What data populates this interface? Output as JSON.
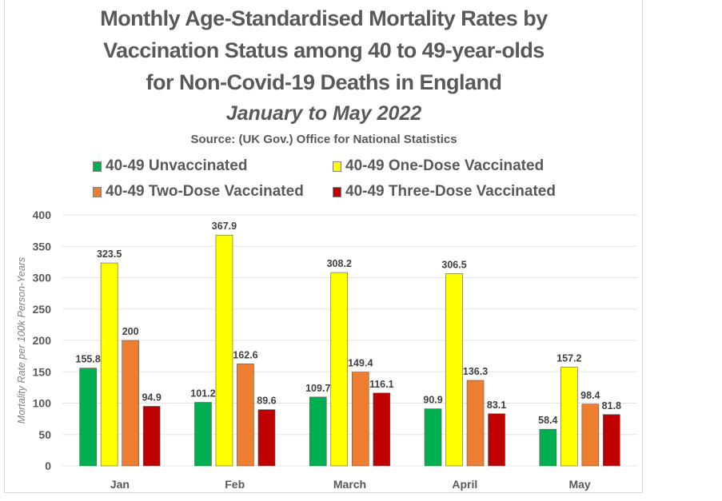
{
  "chart_data": {
    "type": "bar",
    "title": "Monthly Age-Standardised Mortality Rates by Vaccination Status among 40 to 49-year-olds for Non-Covid-19 Deaths in England",
    "title_lines": [
      "Monthly Age-Standardised Mortality Rates by",
      "Vaccination Status among 40 to 49-year-olds",
      "for Non-Covid-19 Deaths in England"
    ],
    "subtitle": "January to May 2022",
    "source": "Source: (UK Gov.) Office for National Statistics",
    "xlabel": "",
    "ylabel": "Mortality Rate per 100k Person-Years",
    "ylim": [
      0,
      400
    ],
    "yticks": [
      0,
      50,
      100,
      150,
      200,
      250,
      300,
      350,
      400
    ],
    "grid": true,
    "legend_position": "top",
    "categories": [
      "Jan",
      "Feb",
      "March",
      "April",
      "May"
    ],
    "series": [
      {
        "name": "40-49 Unvaccinated",
        "color": "#00b050",
        "values": [
          155.8,
          101.2,
          109.7,
          90.9,
          58.4
        ]
      },
      {
        "name": "40-49 One-Dose Vaccinated",
        "color": "#ffff00",
        "values": [
          323.5,
          367.9,
          308.2,
          306.5,
          157.2
        ]
      },
      {
        "name": "40-49 Two-Dose Vaccinated",
        "color": "#ed7d31",
        "values": [
          200,
          162.6,
          149.4,
          136.3,
          98.4
        ]
      },
      {
        "name": "40-49 Three-Dose Vaccinated",
        "color": "#c00000",
        "values": [
          94.9,
          89.6,
          116.1,
          83.1,
          81.8
        ]
      }
    ]
  }
}
